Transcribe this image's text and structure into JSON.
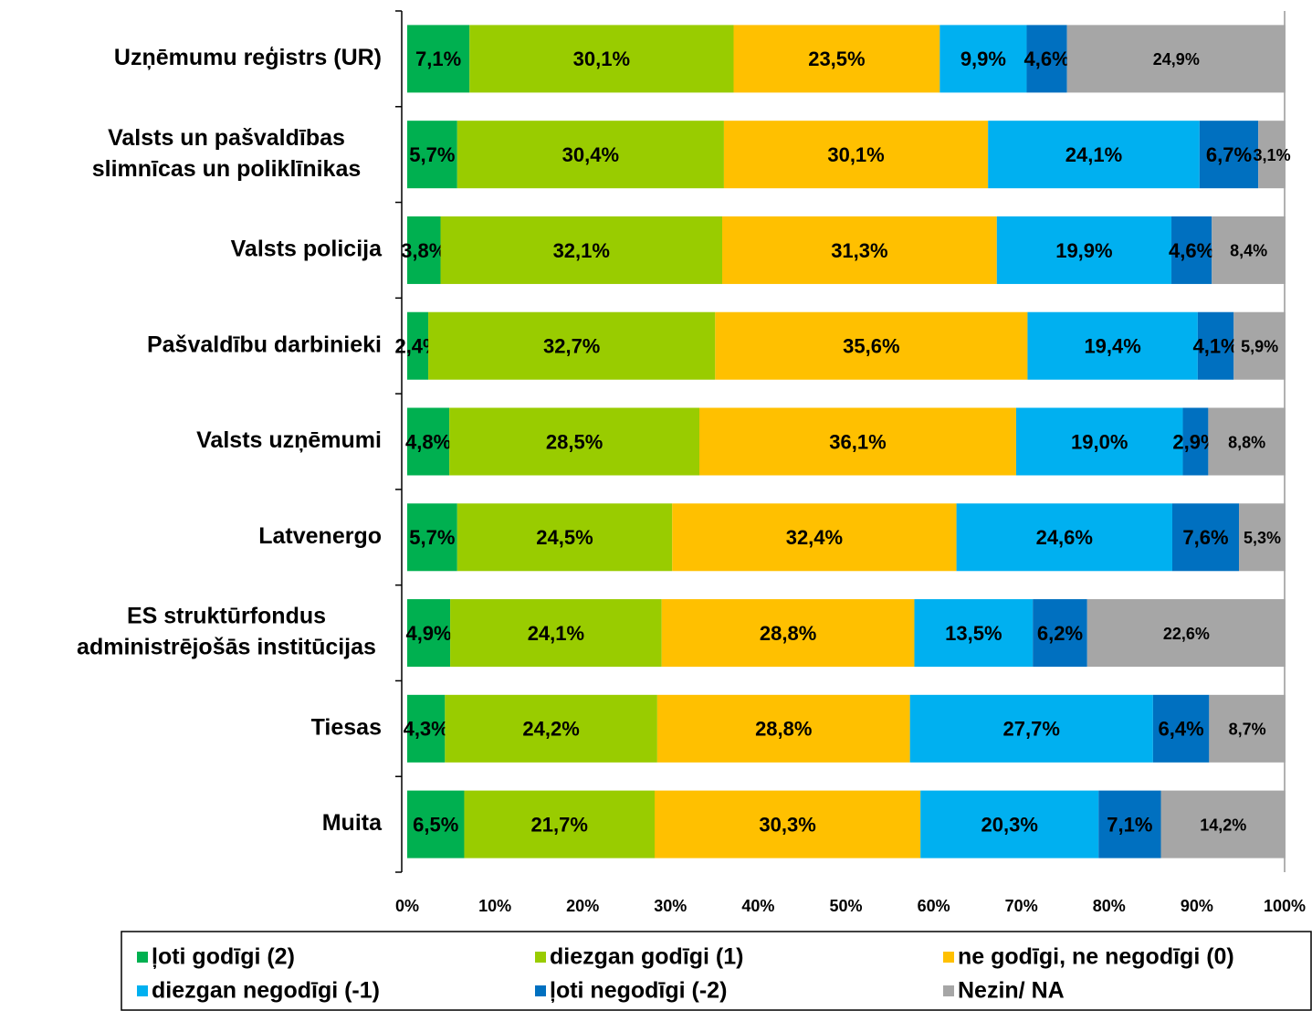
{
  "chart_data": {
    "type": "stacked_barh",
    "categories": [
      [
        "Uzņēmumu reģistrs (UR)"
      ],
      [
        "Valsts un pašvaldības",
        "slimnīcas un poliklīnikas"
      ],
      [
        "Valsts policija"
      ],
      [
        "Pašvaldību darbinieki"
      ],
      [
        "Valsts uzņēmumi"
      ],
      [
        "Latvenergo"
      ],
      [
        "ES struktūrfondus",
        "administrējošās institūcijas"
      ],
      [
        "Tiesas"
      ],
      [
        "Muita"
      ]
    ],
    "series": [
      {
        "name": "ļoti godīgi (2)",
        "color": "#00b050",
        "values": [
          7.1,
          5.7,
          3.8,
          2.4,
          4.8,
          5.7,
          4.9,
          4.3,
          6.5
        ],
        "value_labels": [
          "7,1%",
          "5,7%",
          "3,8%",
          "2,4%",
          "4,8%",
          "5,7%",
          "4,9%",
          "4,3%",
          "6,5%"
        ]
      },
      {
        "name": "diezgan godīgi (1)",
        "color": "#99cc00",
        "values": [
          30.1,
          30.4,
          32.1,
          32.7,
          28.5,
          24.5,
          24.1,
          24.2,
          21.7
        ],
        "value_labels": [
          "30,1%",
          "30,4%",
          "32,1%",
          "32,7%",
          "28,5%",
          "24,5%",
          "24,1%",
          "24,2%",
          "21,7%"
        ]
      },
      {
        "name": "ne godīgi, ne negodīgi (0)",
        "color": "#ffc000",
        "values": [
          23.5,
          30.1,
          31.3,
          35.6,
          36.1,
          32.4,
          28.8,
          28.8,
          30.3
        ],
        "value_labels": [
          "23,5%",
          "30,1%",
          "31,3%",
          "35,6%",
          "36,1%",
          "32,4%",
          "28,8%",
          "28,8%",
          "30,3%"
        ]
      },
      {
        "name": "diezgan negodīgi (-1)",
        "color": "#00b0f0",
        "values": [
          9.9,
          24.1,
          19.9,
          19.4,
          19.0,
          24.6,
          13.5,
          27.7,
          20.3
        ],
        "value_labels": [
          "9,9%",
          "24,1%",
          "19,9%",
          "19,4%",
          "19,0%",
          "24,6%",
          "13,5%",
          "27,7%",
          "20,3%"
        ]
      },
      {
        "name": "ļoti negodīgi (-2)",
        "color": "#0070c0",
        "values": [
          4.6,
          6.7,
          4.6,
          4.1,
          2.9,
          7.6,
          6.2,
          6.4,
          7.1
        ],
        "value_labels": [
          "4,6%",
          "6,7%",
          "4,6%",
          "4,1%",
          "2,9%",
          "7,6%",
          "6,2%",
          "6,4%",
          "7,1%"
        ]
      },
      {
        "name": "Nezin/ NA",
        "color": "#a6a6a6",
        "values": [
          24.9,
          3.1,
          8.4,
          5.9,
          8.8,
          5.3,
          22.6,
          8.7,
          14.2
        ],
        "value_labels": [
          "24,9%",
          "3,1%",
          "8,4%",
          "5,9%",
          "8,8%",
          "5,3%",
          "22,6%",
          "8,7%",
          "14,2%"
        ]
      }
    ],
    "xlim": [
      0,
      100
    ],
    "xticks": [
      {
        "value": 0,
        "label": "0%"
      },
      {
        "value": 10,
        "label": "10%"
      },
      {
        "value": 20,
        "label": "20%"
      },
      {
        "value": 30,
        "label": "30%"
      },
      {
        "value": 40,
        "label": "40%"
      },
      {
        "value": 50,
        "label": "50%"
      },
      {
        "value": 60,
        "label": "60%"
      },
      {
        "value": 70,
        "label": "70%"
      },
      {
        "value": 80,
        "label": "80%"
      },
      {
        "value": 90,
        "label": "90%"
      },
      {
        "value": 100,
        "label": "100%"
      }
    ],
    "legend": "bottom"
  }
}
